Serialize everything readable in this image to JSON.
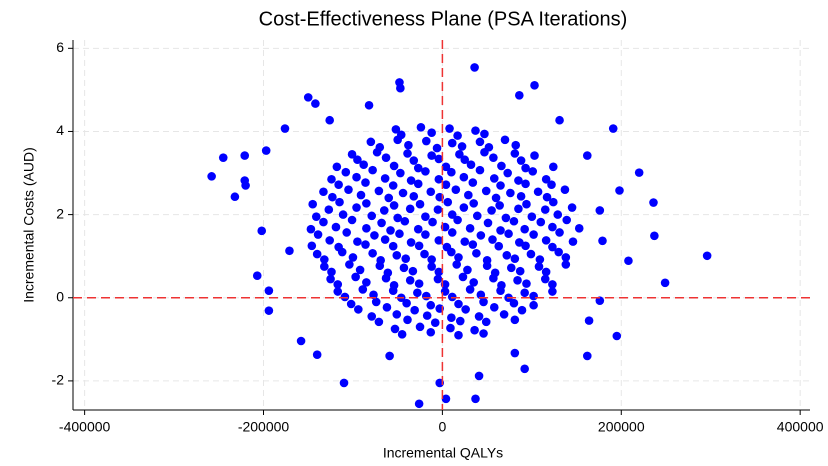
{
  "chart_data": {
    "type": "scatter",
    "title": "Cost-Effectiveness Plane (PSA Iterations)",
    "xlabel": "Incremental QALYs",
    "ylabel": "Incremental Costs (AUD)",
    "color": "#0000ff",
    "grid": true,
    "hlines": [
      0
    ],
    "vlines": [
      0
    ],
    "refline_color": "#ee3333",
    "xlim": [
      -413000,
      411000
    ],
    "ylim": [
      -2.7,
      6.2
    ],
    "xticks": [
      -400000,
      -200000,
      0,
      200000,
      400000
    ],
    "yticks": [
      -2,
      0,
      2,
      4,
      6
    ],
    "x": [
      -53000,
      -45000,
      -25000,
      -13000,
      9000,
      18000,
      36000,
      46000,
      -79000,
      -71000,
      -51000,
      -39000,
      -17000,
      -8000,
      10000,
      20000,
      41000,
      49000,
      69000,
      81000,
      -102000,
      -94000,
      -74000,
      -62000,
      -40000,
      -31000,
      -13000,
      -3000,
      18000,
      26000,
      46000,
      58000,
      80000,
      89000,
      102000,
      -117000,
      -109000,
      -89000,
      -77000,
      -55000,
      -46000,
      -28000,
      -18000,
      3000,
      11000,
      31000,
      43000,
      65000,
      74000,
      92000,
      102000,
      123000,
      -125000,
      -117000,
      -97000,
      -85000,
      -63000,
      -54000,
      -36000,
      -26000,
      -5000,
      3000,
      23000,
      35000,
      57000,
      66000,
      84000,
      94000,
      115000,
      123000,
      -132000,
      -124000,
      -104000,
      -92000,
      -70000,
      -61000,
      -43000,
      -33000,
      -12000,
      -4000,
      16000,
      28000,
      50000,
      59000,
      77000,
      87000,
      108000,
      116000,
      138000,
      -140000,
      -132000,
      -112000,
      -100000,
      -78000,
      -69000,
      -51000,
      -41000,
      -20000,
      -12000,
      10000,
      18000,
      38000,
      50000,
      72000,
      81000,
      99000,
      109000,
      130000,
      138000,
      -146000,
      -126000,
      -116000,
      -95000,
      -86000,
      -64000,
      -55000,
      -35000,
      -26000,
      -4000,
      5000,
      25000,
      34000,
      56000,
      63000,
      86000,
      93000,
      116000,
      123000,
      146000,
      -147000,
      -139000,
      -119000,
      -107000,
      -85000,
      -76000,
      -58000,
      -48000,
      -27000,
      -19000,
      3000,
      11000,
      31000,
      43000,
      65000,
      74000,
      92000,
      102000,
      123000,
      131000,
      153000,
      -141000,
      -133000,
      -111000,
      -101000,
      -79000,
      -68000,
      -50000,
      -42000,
      -19000,
      -11000,
      11000,
      17000,
      39000,
      51000,
      71000,
      80000,
      100000,
      110000,
      129000,
      139000,
      -145000,
      -127000,
      -115000,
      -96000,
      -85000,
      -65000,
      -54000,
      -36000,
      -25000,
      -5000,
      6000,
      24000,
      35000,
      55000,
      64000,
      85000,
      94000,
      115000,
      124000,
      145000,
      -133000,
      -123000,
      -105000,
      -91000,
      -71000,
      -60000,
      -44000,
      -32000,
      -13000,
      -3000,
      15000,
      29000,
      49000,
      60000,
      76000,
      88000,
      107000,
      117000,
      137000,
      -124000,
      -116000,
      -96000,
      -86000,
      -64000,
      -55000,
      -35000,
      -27000,
      -4000,
      4000,
      24000,
      34000,
      58000,
      65000,
      85000,
      93000,
      116000,
      122000,
      -118000,
      -108000,
      -88000,
      -78000,
      -54000,
      -47000,
      -27000,
      -19000,
      4000,
      10000,
      32000,
      42000,
      66000,
      73000,
      93000,
      101000,
      124000,
      -101000,
      -95000,
      -73000,
      -63000,
      -39000,
      -32000,
      -12000,
      -4000,
      19000,
      25000,
      47000,
      57000,
      81000,
      88000,
      103000,
      -80000,
      -70000,
      -50000,
      -38000,
      -18000,
      -6000,
      11000,
      22000,
      42000,
      52000,
      70000,
      82000,
      -52000,
      -46000,
      -24000,
      -12000,
      8000,
      17000,
      37000,
      47000,
      -258000,
      -245000,
      -221000,
      -221000,
      -220000,
      -197000,
      -176000,
      -150000,
      -142000,
      -48000,
      -47000,
      36000,
      103000,
      296000,
      249000,
      237000,
      236000,
      220000,
      191000,
      198000,
      208000,
      195000,
      162000,
      -110000,
      -26000,
      4000,
      -3000,
      37000,
      92000,
      -158000,
      -140000,
      -207000,
      -202000,
      -232000,
      -194000,
      176000,
      179000,
      162000,
      131000,
      -126000,
      -82000,
      -59000,
      81000,
      41000,
      -194000,
      164000,
      -171000,
      176000,
      86000
    ],
    "values": [
      -0.75,
      -0.88,
      -0.7,
      -0.83,
      -0.73,
      -0.9,
      -0.78,
      -0.86,
      -0.45,
      -0.58,
      -0.4,
      -0.53,
      -0.43,
      -0.6,
      -0.48,
      -0.56,
      -0.45,
      -0.58,
      -0.4,
      -0.53,
      -0.15,
      -0.28,
      -0.1,
      -0.23,
      -0.13,
      -0.3,
      -0.18,
      -0.26,
      -0.15,
      -0.28,
      -0.1,
      -0.23,
      -0.13,
      -0.3,
      -0.18,
      0.15,
      0.02,
      0.2,
      0.07,
      0.17,
      0,
      0.12,
      0.04,
      0.15,
      0.02,
      0.2,
      0.07,
      0.17,
      0,
      0.12,
      0.04,
      0.15,
      0.45,
      0.32,
      0.5,
      0.37,
      0.47,
      0.3,
      0.42,
      0.34,
      0.45,
      0.32,
      0.5,
      0.37,
      0.47,
      0.3,
      0.42,
      0.34,
      0.45,
      0.32,
      0.75,
      0.62,
      0.8,
      0.67,
      0.77,
      0.6,
      0.72,
      0.64,
      0.75,
      0.62,
      0.8,
      0.67,
      0.77,
      0.6,
      0.72,
      0.64,
      0.75,
      0.62,
      0.8,
      1.05,
      0.92,
      1.1,
      0.97,
      1.07,
      0.9,
      1.02,
      0.94,
      1.05,
      0.92,
      1.1,
      0.97,
      1.07,
      0.9,
      1.02,
      0.94,
      1.05,
      0.92,
      1.1,
      0.97,
      1.25,
      1.38,
      1.22,
      1.35,
      1.28,
      1.4,
      1.24,
      1.33,
      1.25,
      1.38,
      1.22,
      1.35,
      1.28,
      1.4,
      1.24,
      1.33,
      1.25,
      1.38,
      1.22,
      1.35,
      1.65,
      1.52,
      1.7,
      1.57,
      1.67,
      1.5,
      1.62,
      1.54,
      1.65,
      1.52,
      1.7,
      1.57,
      1.67,
      1.5,
      1.62,
      1.54,
      1.65,
      1.52,
      1.7,
      1.57,
      1.67,
      1.95,
      1.82,
      2.0,
      1.87,
      1.97,
      1.8,
      1.92,
      1.84,
      1.95,
      1.82,
      2.0,
      1.87,
      1.97,
      1.8,
      1.92,
      1.84,
      1.95,
      1.82,
      2.0,
      1.87,
      2.25,
      2.12,
      2.3,
      2.17,
      2.27,
      2.1,
      2.22,
      2.14,
      2.25,
      2.12,
      2.3,
      2.17,
      2.27,
      2.1,
      2.22,
      2.14,
      2.25,
      2.12,
      2.3,
      2.17,
      2.55,
      2.42,
      2.6,
      2.47,
      2.57,
      2.4,
      2.52,
      2.44,
      2.55,
      2.42,
      2.6,
      2.47,
      2.57,
      2.4,
      2.52,
      2.44,
      2.55,
      2.42,
      2.6,
      2.85,
      2.72,
      2.9,
      2.77,
      2.87,
      2.7,
      2.82,
      2.74,
      2.85,
      2.72,
      2.9,
      2.77,
      2.87,
      2.7,
      2.82,
      2.74,
      2.85,
      2.72,
      3.15,
      3.02,
      3.2,
      3.07,
      3.17,
      3.0,
      3.12,
      3.04,
      3.15,
      3.02,
      3.2,
      3.07,
      3.17,
      3.0,
      3.12,
      3.04,
      3.15,
      3.45,
      3.32,
      3.5,
      3.37,
      3.47,
      3.3,
      3.42,
      3.34,
      3.45,
      3.32,
      3.5,
      3.37,
      3.47,
      3.3,
      3.42,
      3.75,
      3.62,
      3.8,
      3.67,
      3.77,
      3.6,
      3.72,
      3.64,
      3.75,
      3.62,
      3.8,
      3.67,
      4.05,
      3.92,
      4.1,
      3.97,
      4.07,
      3.9,
      4.02,
      3.94,
      2.92,
      3.37,
      3.42,
      2.82,
      2.7,
      3.54,
      4.07,
      4.82,
      4.67,
      5.18,
      5.04,
      5.54,
      5.11,
      1.01,
      0.36,
      1.49,
      2.29,
      3.01,
      4.07,
      2.58,
      0.89,
      -0.92,
      -1.4,
      -2.05,
      -2.55,
      -2.43,
      -2.05,
      -2.43,
      -1.71,
      -1.04,
      -1.37,
      0.53,
      1.61,
      2.43,
      0.17,
      -0.07,
      1.37,
      3.42,
      4.27,
      4.27,
      4.63,
      -1.4,
      -1.33,
      -1.88,
      -0.31,
      -0.55,
      1.13,
      2.1,
      4.87
    ]
  }
}
